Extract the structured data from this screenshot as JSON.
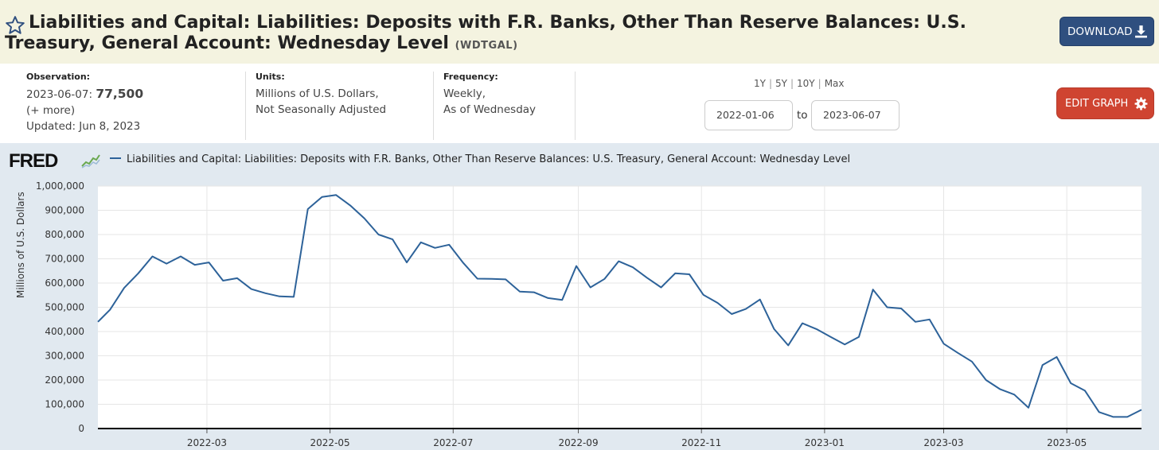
{
  "header": {
    "title": "Liabilities and Capital: Liabilities: Deposits with F.R. Banks, Other Than Reserve Balances: U.S. Treasury, General Account: Wednesday Level",
    "series_id": "(WDTGAL)",
    "download_label": "DOWNLOAD"
  },
  "info": {
    "observation_label": "Observation:",
    "observation_date": "2023-06-07:",
    "observation_value": "77,500",
    "more_label": "(+ more)",
    "updated": "Updated: Jun 8, 2023",
    "units_label": "Units:",
    "units_line1": "Millions of U.S. Dollars,",
    "units_line2": "Not Seasonally Adjusted",
    "frequency_label": "Frequency:",
    "frequency_line1": "Weekly,",
    "frequency_line2": "As of Wednesday",
    "range_1y": "1Y",
    "range_5y": "5Y",
    "range_10y": "10Y",
    "range_max": "Max",
    "separator": "|",
    "start_date": "2022-01-06",
    "to_label": "to",
    "end_date": "2023-06-07",
    "edit_label": "EDIT GRAPH"
  },
  "chart_header": {
    "logo_text": "FRED",
    "legend_text": "Liabilities and Capital: Liabilities: Deposits with F.R. Banks, Other Than Reserve Balances: U.S. Treasury, General Account: Wednesday Level"
  },
  "colors": {
    "series": "#2d6299",
    "header_bg": "#f4f3e0",
    "chart_bg": "#e1e9f0",
    "download_bg": "#2f4f7f",
    "edit_bg": "#cf4431"
  },
  "chart_data": {
    "type": "line",
    "title": "",
    "xlabel": "",
    "ylabel": "Millions of U.S. Dollars",
    "ylim": [
      0,
      1000000
    ],
    "yticks": [
      0,
      100000,
      200000,
      300000,
      400000,
      500000,
      600000,
      700000,
      800000,
      900000,
      1000000
    ],
    "ytick_labels": [
      "0",
      "100,000",
      "200,000",
      "300,000",
      "400,000",
      "500,000",
      "600,000",
      "700,000",
      "800,000",
      "900,000",
      "1,000,000"
    ],
    "xlim": [
      "2022-01-06",
      "2023-06-07"
    ],
    "xticks": [
      "2022-03-01",
      "2022-05-01",
      "2022-07-01",
      "2022-09-01",
      "2022-11-01",
      "2023-01-01",
      "2023-03-01",
      "2023-05-01"
    ],
    "xtick_labels": [
      "2022-03",
      "2022-05",
      "2022-07",
      "2022-09",
      "2022-11",
      "2023-01",
      "2023-03",
      "2023-05"
    ],
    "grid": true,
    "series": [
      {
        "x": [
          "2022-01-06",
          "2022-01-12",
          "2022-01-19",
          "2022-01-26",
          "2022-02-02",
          "2022-02-09",
          "2022-02-16",
          "2022-02-23",
          "2022-03-02",
          "2022-03-09",
          "2022-03-16",
          "2022-03-23",
          "2022-03-30",
          "2022-04-06",
          "2022-04-13",
          "2022-04-20",
          "2022-04-27",
          "2022-05-04",
          "2022-05-11",
          "2022-05-18",
          "2022-05-25",
          "2022-06-01",
          "2022-06-08",
          "2022-06-15",
          "2022-06-22",
          "2022-06-29",
          "2022-07-06",
          "2022-07-13",
          "2022-07-20",
          "2022-07-27",
          "2022-08-03",
          "2022-08-10",
          "2022-08-17",
          "2022-08-24",
          "2022-08-31",
          "2022-09-07",
          "2022-09-14",
          "2022-09-21",
          "2022-09-28",
          "2022-10-05",
          "2022-10-12",
          "2022-10-19",
          "2022-10-26",
          "2022-11-02",
          "2022-11-09",
          "2022-11-16",
          "2022-11-23",
          "2022-11-30",
          "2022-12-07",
          "2022-12-14",
          "2022-12-21",
          "2022-12-28",
          "2023-01-04",
          "2023-01-11",
          "2023-01-18",
          "2023-01-25",
          "2023-02-01",
          "2023-02-08",
          "2023-02-15",
          "2023-02-22",
          "2023-03-01",
          "2023-03-08",
          "2023-03-15",
          "2023-03-22",
          "2023-03-29",
          "2023-04-05",
          "2023-04-12",
          "2023-04-19",
          "2023-04-26",
          "2023-05-03",
          "2023-05-10",
          "2023-05-17",
          "2023-05-24",
          "2023-05-31",
          "2023-06-07"
        ],
        "y": [
          440000,
          490000,
          580000,
          640000,
          710000,
          680000,
          710000,
          675000,
          685000,
          610000,
          620000,
          575000,
          558000,
          545000,
          543000,
          905000,
          955000,
          963000,
          920000,
          867000,
          800000,
          780000,
          685000,
          768000,
          745000,
          758000,
          683000,
          618000,
          617000,
          615000,
          565000,
          562000,
          538000,
          530000,
          670000,
          582000,
          617000,
          690000,
          665000,
          622000,
          582000,
          640000,
          636000,
          551000,
          518000,
          472000,
          493000,
          532000,
          410000,
          343000,
          434000,
          410000,
          378000,
          347000,
          378000,
          573000,
          500000,
          495000,
          440000,
          450000,
          350000,
          312000,
          276000,
          200000,
          162000,
          140000,
          86000,
          262000,
          295000,
          187000,
          156000,
          68000,
          48000,
          48000,
          77500
        ]
      }
    ]
  }
}
